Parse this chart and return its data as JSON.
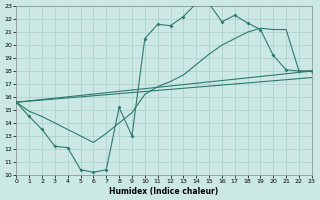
{
  "xlabel": "Humidex (Indice chaleur)",
  "background_color": "#cce8e5",
  "grid_color": "#aacfcc",
  "line_color": "#2d7a6e",
  "xlim": [
    0,
    23
  ],
  "ylim": [
    10,
    23
  ],
  "xticks": [
    0,
    1,
    2,
    3,
    4,
    5,
    6,
    7,
    8,
    9,
    10,
    11,
    12,
    13,
    14,
    15,
    16,
    17,
    18,
    19,
    20,
    21,
    22,
    23
  ],
  "yticks": [
    10,
    11,
    12,
    13,
    14,
    15,
    16,
    17,
    18,
    19,
    20,
    21,
    22,
    23
  ],
  "main_x": [
    0,
    1,
    2,
    3,
    4,
    5,
    6,
    7,
    8,
    9,
    10,
    11,
    12,
    13,
    14,
    15,
    16,
    17,
    18,
    19,
    20,
    21,
    22,
    23
  ],
  "main_y": [
    15.6,
    14.5,
    13.5,
    12.2,
    12.1,
    10.4,
    10.2,
    10.4,
    15.2,
    13.0,
    20.5,
    21.6,
    21.5,
    22.2,
    23.2,
    23.2,
    21.8,
    22.3,
    21.7,
    21.2,
    19.2,
    18.1,
    18.0,
    18.0
  ],
  "line2_x": [
    0,
    1,
    2,
    3,
    4,
    5,
    6,
    7,
    8,
    9,
    10,
    11,
    12,
    13,
    14,
    15,
    16,
    17,
    18,
    19,
    20,
    21,
    22,
    23
  ],
  "line2_y": [
    15.6,
    14.9,
    14.5,
    14.0,
    13.5,
    13.0,
    12.5,
    13.2,
    14.0,
    14.8,
    16.2,
    16.8,
    17.2,
    17.7,
    18.5,
    19.3,
    20.0,
    20.5,
    21.0,
    21.3,
    21.2,
    21.2,
    18.0,
    18.0
  ],
  "line3_x": [
    0,
    23
  ],
  "line3_y": [
    15.6,
    18.0
  ],
  "line4_x": [
    0,
    23
  ],
  "line4_y": [
    15.6,
    17.5
  ]
}
